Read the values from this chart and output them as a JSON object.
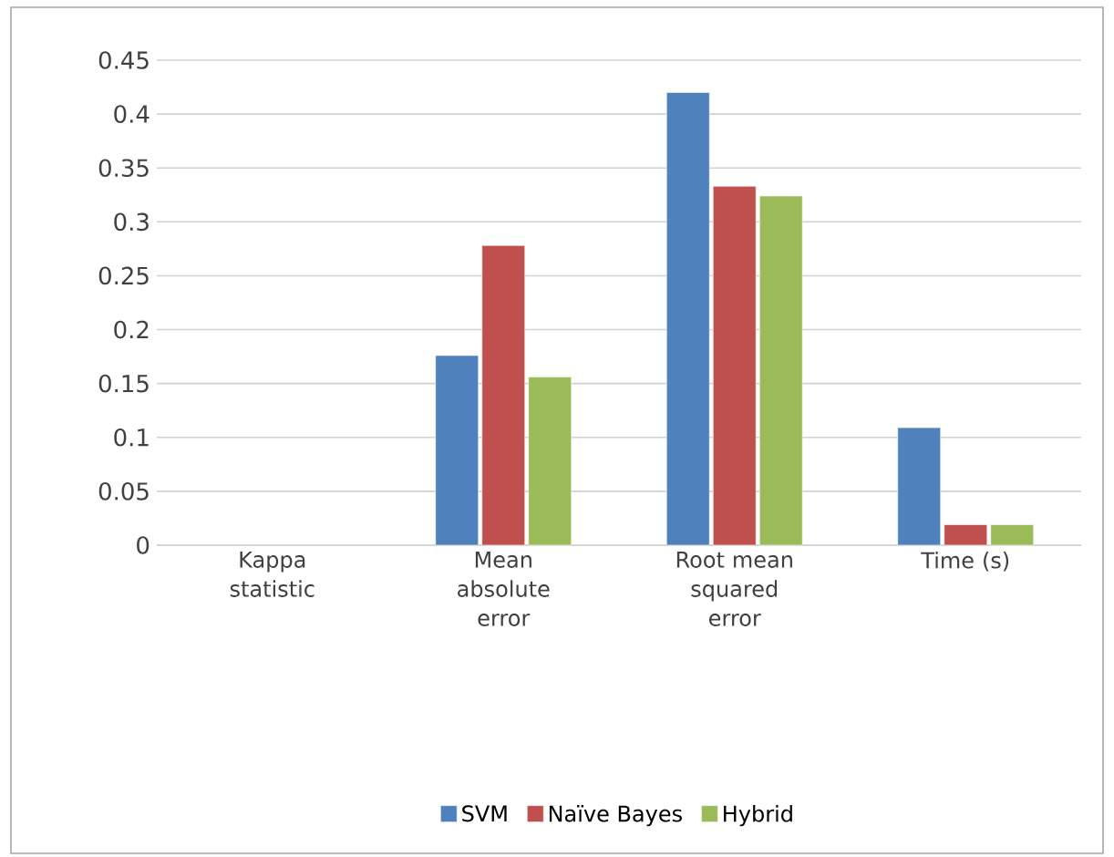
{
  "chart_data": {
    "type": "bar",
    "categories": [
      "Kappa statistic",
      "Mean absolute error",
      "Root mean squared error",
      "Time (s)"
    ],
    "series": [
      {
        "name": "SVM",
        "color": "#4f81bd",
        "values": [
          null,
          0.176,
          0.42,
          0.109
        ]
      },
      {
        "name": "Naïve Bayes",
        "color": "#c0504d",
        "values": [
          null,
          0.278,
          0.333,
          0.019
        ]
      },
      {
        "name": "Hybrid",
        "color": "#9bbb59",
        "values": [
          null,
          0.156,
          0.324,
          0.019
        ]
      }
    ],
    "ylim": [
      0,
      0.45
    ],
    "yticks": [
      0,
      0.05,
      0.1,
      0.15,
      0.2,
      0.25,
      0.3,
      0.35,
      0.4,
      0.45
    ],
    "grid": "y",
    "legend": "bottom"
  }
}
